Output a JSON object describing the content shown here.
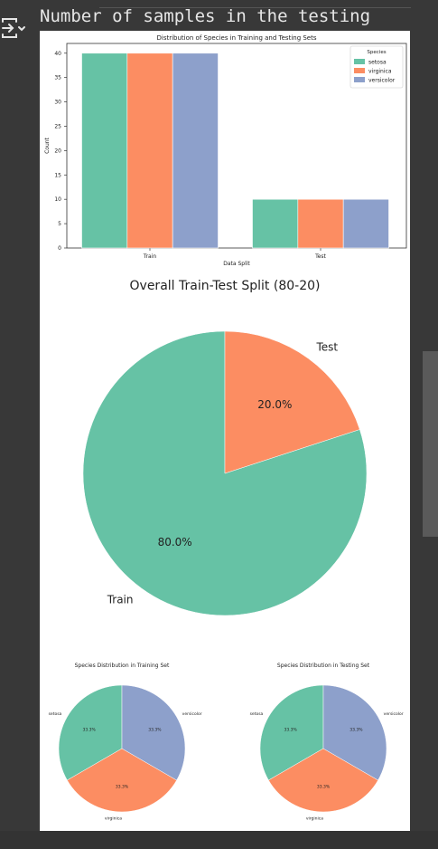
{
  "cell": {
    "output_text": "Number of samples in the testing",
    "output_icon": "output-toggle-icon"
  },
  "colors": {
    "setosa": "#66c2a5",
    "virginica": "#fc8d62",
    "versicolor": "#8da0cb",
    "train": "#66c2a5",
    "test": "#fc8d62",
    "background": "#383838"
  },
  "chart_data": [
    {
      "type": "bar",
      "title": "Distribution of Species in Training and Testing Sets",
      "xlabel": "Data Split",
      "ylabel": "Count",
      "categories": [
        "Train",
        "Test"
      ],
      "ylim": [
        0,
        42
      ],
      "yticks": [
        0,
        5,
        10,
        15,
        20,
        25,
        30,
        35,
        40
      ],
      "series": [
        {
          "name": "setosa",
          "values": [
            40,
            10
          ]
        },
        {
          "name": "virginica",
          "values": [
            40,
            10
          ]
        },
        {
          "name": "versicolor",
          "values": [
            40,
            10
          ]
        }
      ],
      "legend": {
        "title": "Species",
        "placement": "top-right"
      },
      "grid": false
    },
    {
      "type": "pie",
      "title": "Overall Train-Test Split (80-20)",
      "labels": [
        "Train",
        "Test"
      ],
      "values": [
        80,
        20
      ],
      "autopct": [
        "80.0%",
        "20.0%"
      ]
    },
    {
      "type": "pie",
      "title": "Species Distribution in Training Set",
      "labels": [
        "setosa",
        "virginica",
        "versicolor"
      ],
      "values": [
        33.3,
        33.3,
        33.3
      ],
      "autopct": [
        "33.3%",
        "33.3%",
        "33.3%"
      ]
    },
    {
      "type": "pie",
      "title": "Species Distribution in Testing Set",
      "labels": [
        "setosa",
        "virginica",
        "versicolor"
      ],
      "values": [
        33.3,
        33.3,
        33.3
      ],
      "autopct": [
        "33.3%",
        "33.3%",
        "33.3%"
      ]
    }
  ]
}
